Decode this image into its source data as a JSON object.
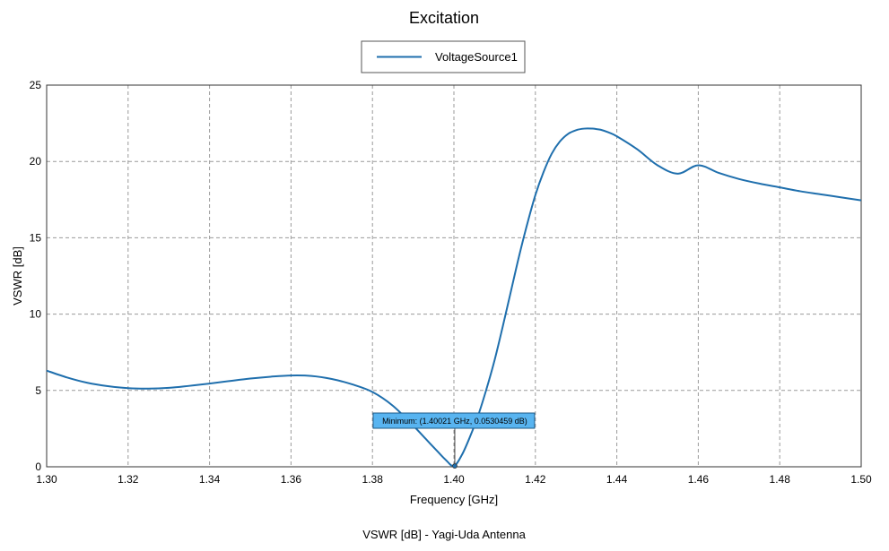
{
  "chart_data": {
    "type": "line",
    "title": "Excitation",
    "xlabel": "Frequency [GHz]",
    "ylabel": "VSWR [dB]",
    "footer": "VSWR [dB] - Yagi-Uda Antenna",
    "xlim": [
      1.3,
      1.5
    ],
    "ylim": [
      0,
      25
    ],
    "xticks": [
      "1.30",
      "1.32",
      "1.34",
      "1.36",
      "1.38",
      "1.40",
      "1.42",
      "1.44",
      "1.46",
      "1.48",
      "1.50"
    ],
    "yticks": [
      "0",
      "5",
      "10",
      "15",
      "20",
      "25"
    ],
    "grid": true,
    "legend_position": "top-center",
    "series": [
      {
        "name": "VoltageSource1",
        "color": "#1f6fad",
        "x": [
          1.3,
          1.305,
          1.31,
          1.315,
          1.32,
          1.325,
          1.33,
          1.335,
          1.34,
          1.345,
          1.35,
          1.355,
          1.36,
          1.365,
          1.37,
          1.375,
          1.38,
          1.385,
          1.39,
          1.393,
          1.396,
          1.398,
          1.4,
          1.402,
          1.404,
          1.406,
          1.408,
          1.41,
          1.412,
          1.414,
          1.416,
          1.418,
          1.42,
          1.422,
          1.424,
          1.426,
          1.428,
          1.43,
          1.432,
          1.434,
          1.435,
          1.436,
          1.438,
          1.44,
          1.445,
          1.45,
          1.455,
          1.46,
          1.465,
          1.47,
          1.475,
          1.48,
          1.485,
          1.49,
          1.495,
          1.5
        ],
        "y": [
          6.3,
          5.85,
          5.5,
          5.28,
          5.15,
          5.12,
          5.17,
          5.3,
          5.45,
          5.62,
          5.78,
          5.9,
          5.98,
          5.95,
          5.75,
          5.4,
          4.9,
          4.0,
          2.7,
          1.85,
          1.0,
          0.45,
          0.05,
          0.8,
          2.0,
          3.4,
          5.1,
          7.0,
          9.2,
          11.5,
          13.8,
          15.9,
          17.8,
          19.3,
          20.5,
          21.3,
          21.8,
          22.05,
          22.15,
          22.15,
          22.12,
          22.08,
          21.9,
          21.65,
          20.8,
          19.75,
          19.2,
          19.75,
          19.25,
          18.85,
          18.55,
          18.3,
          18.05,
          17.85,
          17.65,
          17.45
        ]
      }
    ],
    "annotation": {
      "text": "Minimum: (1.40021 GHz, 0.0530459 dB)",
      "x": 1.40021,
      "y": 0.0530459
    }
  }
}
